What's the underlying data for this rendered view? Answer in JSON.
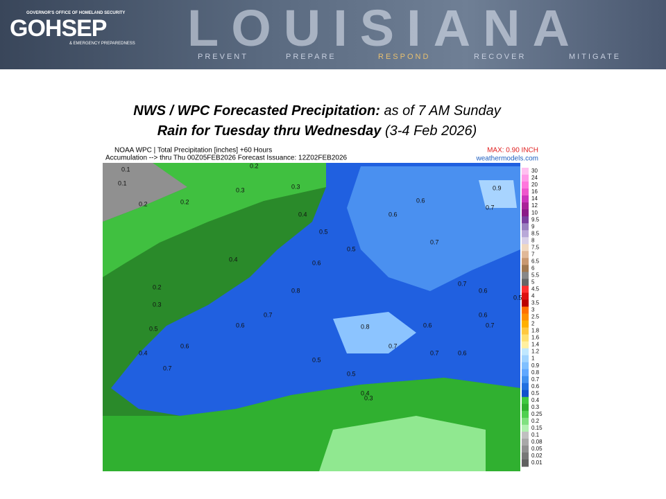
{
  "header": {
    "agency_line": "GOVERNOR'S OFFICE OF HOMELAND SECURITY",
    "logo": "GOHSEP",
    "agency_line2": "& EMERGENCY PREPAREDNESS",
    "state": "LOUISIANA",
    "mottos": [
      "PREVENT",
      "PREPARE",
      "RESPOND",
      "RECOVER",
      "MITIGATE"
    ]
  },
  "title": {
    "line1_bold": "NWS / WPC Forecasted Precipitation:",
    "line1_rest": "as of 7 AM Sunday",
    "line2_bold": "Rain for Tuesday thru Wednesday",
    "line2_rest": "(3-4 Feb 2026)"
  },
  "map": {
    "header1": "NOAA WPC | Total Precipitation [inches] +60 Hours",
    "header2": "Accumulation --> thru Thu 00Z05FEB2026   Forecast Issuance: 12Z02FEB2026",
    "max": "MAX: 0.90 INCH",
    "source": "weathermodels.com",
    "scale": [
      "30",
      "24",
      "20",
      "16",
      "14",
      "12",
      "10",
      "9.5",
      "9",
      "8.5",
      "8",
      "7.5",
      "7",
      "6.5",
      "6",
      "5.5",
      "5",
      "4.5",
      "4",
      "3.5",
      "3",
      "2.5",
      "2",
      "1.8",
      "1.6",
      "1.4",
      "1.2",
      "1",
      "0.9",
      "0.8",
      "0.7",
      "0.6",
      "0.5",
      "0.4",
      "0.3",
      "0.25",
      "0.2",
      "0.15",
      "0.1",
      "0.08",
      "0.05",
      "0.02",
      "0.01"
    ],
    "scale_colors": [
      "#ffc0f0",
      "#ff99e8",
      "#ff77dd",
      "#ee55cc",
      "#cc33bb",
      "#aa2299",
      "#8a1a88",
      "#7a3fa0",
      "#9a80c0",
      "#b8a8d8",
      "#d8d0e8",
      "#f0d8c0",
      "#e0b898",
      "#c89870",
      "#a07850",
      "#888888",
      "#666666",
      "#ff3030",
      "#dd1010",
      "#bb0000",
      "#ff7000",
      "#ff9000",
      "#ffb000",
      "#ffc840",
      "#ffe070",
      "#fff0a0",
      "#c0e8ff",
      "#a0d4ff",
      "#80c0ff",
      "#60a8ff",
      "#4090f0",
      "#2070e0",
      "#1050cc",
      "#40c840",
      "#30b030",
      "#50d050",
      "#80e080",
      "#b0f0b0",
      "#c0c0c0",
      "#a8a8a8",
      "#909090",
      "#787878",
      "#606060"
    ],
    "labels": [
      "0.1",
      "0.2",
      "0.2",
      "0.3",
      "0.4",
      "0.5",
      "0.6",
      "0.6",
      "0.7",
      "0.7",
      "0.9",
      "0.7",
      "0.6",
      "0.5",
      "0.3",
      "0.2",
      "0.1",
      "0.4",
      "0.5",
      "0.6",
      "0.7",
      "0.8",
      "0.7",
      "0.6",
      "0.5",
      "0.4",
      "0.3",
      "0.6",
      "0.7",
      "0.8",
      "0.6",
      "0.5",
      "0.4",
      "0.3",
      "0.2",
      "0.7",
      "0.6",
      "0.5",
      "0.7",
      "0.6"
    ]
  }
}
